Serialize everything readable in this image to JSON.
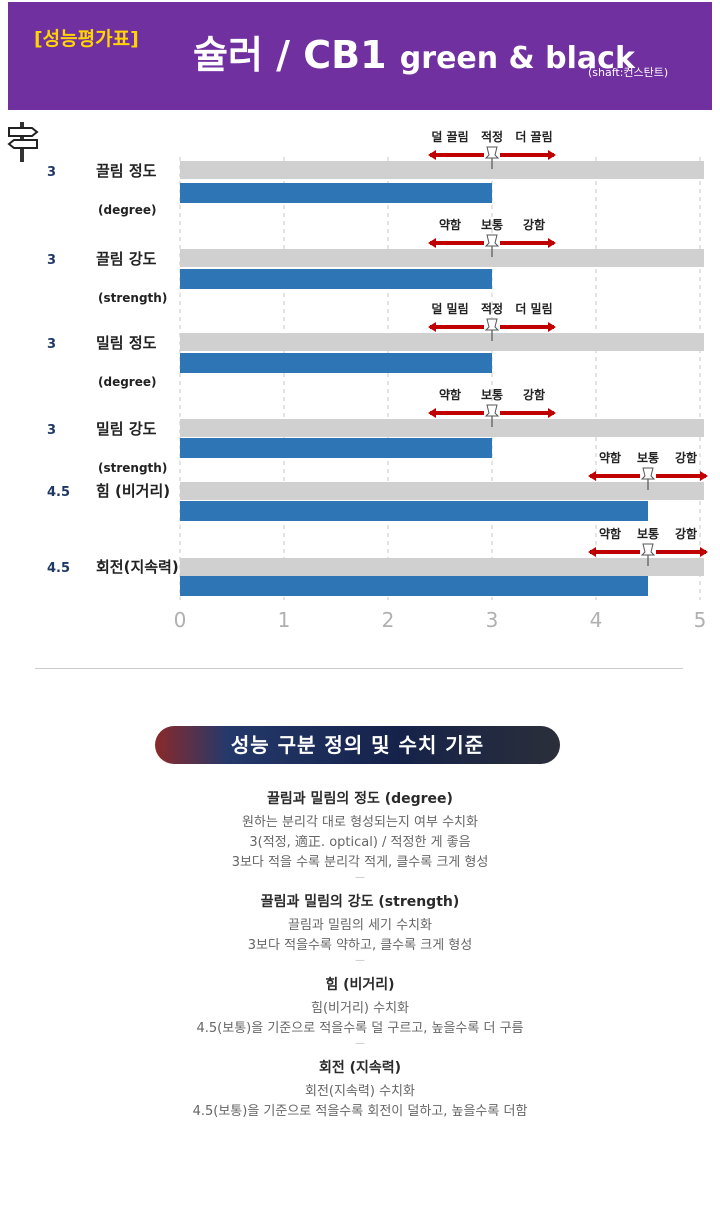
{
  "header": {
    "badge": "[성능평가표]",
    "title_main": "슐러 / CB1",
    "title_sub": "green & black",
    "shaft": "(shaft:컨스탄트)",
    "bg_color": "#7030a0",
    "badge_color": "#ffd400"
  },
  "icons": {
    "signpost": "signpost-icon",
    "pin": "pushpin-icon"
  },
  "colors": {
    "bar": "#2e75b6",
    "track": "#d0d0d0",
    "arrow": "#c00000",
    "value": "#1f3864"
  },
  "chart_data": {
    "type": "bar",
    "orientation": "horizontal",
    "xlim": [
      0,
      5
    ],
    "xticks": [
      "0",
      "1",
      "2",
      "3",
      "4",
      "5"
    ],
    "grid": "vertical dashed",
    "rows": [
      {
        "value": 3,
        "value_label": "3",
        "label": "끌림 정도",
        "sublabel": "(degree)",
        "scale": [
          "덜 끌림",
          "적정",
          "더 끌림"
        ],
        "marker": 3
      },
      {
        "value": 3,
        "value_label": "3",
        "label": "끌림 강도",
        "sublabel": "(strength)",
        "scale": [
          "약함",
          "보통",
          "강함"
        ],
        "marker": 3
      },
      {
        "value": 3,
        "value_label": "3",
        "label": "밀림 정도",
        "sublabel": "(degree)",
        "scale": [
          "덜 밀림",
          "적정",
          "더 밀림"
        ],
        "marker": 3
      },
      {
        "value": 3,
        "value_label": "3",
        "label": "밀림 강도",
        "sublabel": "(strength)",
        "scale": [
          "약함",
          "보통",
          "강함"
        ],
        "marker": 3
      },
      {
        "value": 4.5,
        "value_label": "4.5",
        "label": "힘 (비거리)",
        "sublabel": "",
        "scale": [
          "약함",
          "보통",
          "강함"
        ],
        "marker": 4.5
      },
      {
        "value": 4.5,
        "value_label": "4.5",
        "label": "회전(지속력)",
        "sublabel": "",
        "scale": [
          "약함",
          "보통",
          "강함"
        ],
        "marker": 4.5
      }
    ]
  },
  "section": {
    "pill_title": "성능 구분 정의 및 수치 기준",
    "definitions": [
      {
        "title": "끌림과 밀림의 정도 (degree)",
        "lines": [
          "원하는 분리각 대로 형성되는지 여부 수치화",
          "3(적정, 適正. optical) / 적정한 게 좋음",
          "3보다 적을 수록 분리각 적게, 클수록 크게 형성"
        ]
      },
      {
        "title": "끌림과 밀림의 강도 (strength)",
        "lines": [
          "끌림과 밀림의 세기 수치화",
          "3보다 적을수록 약하고, 클수록 크게 형성"
        ]
      },
      {
        "title": "힘 (비거리)",
        "lines": [
          "힘(비거리) 수치화",
          "4.5(보통)을 기준으로 적을수록 덜 구르고, 높을수록 더 구름"
        ]
      },
      {
        "title": "회전 (지속력)",
        "lines": [
          "회전(지속력) 수치화",
          "4.5(보통)을 기준으로 적을수록 회전이 덜하고, 높을수록 더함"
        ]
      }
    ],
    "separator": "—"
  }
}
